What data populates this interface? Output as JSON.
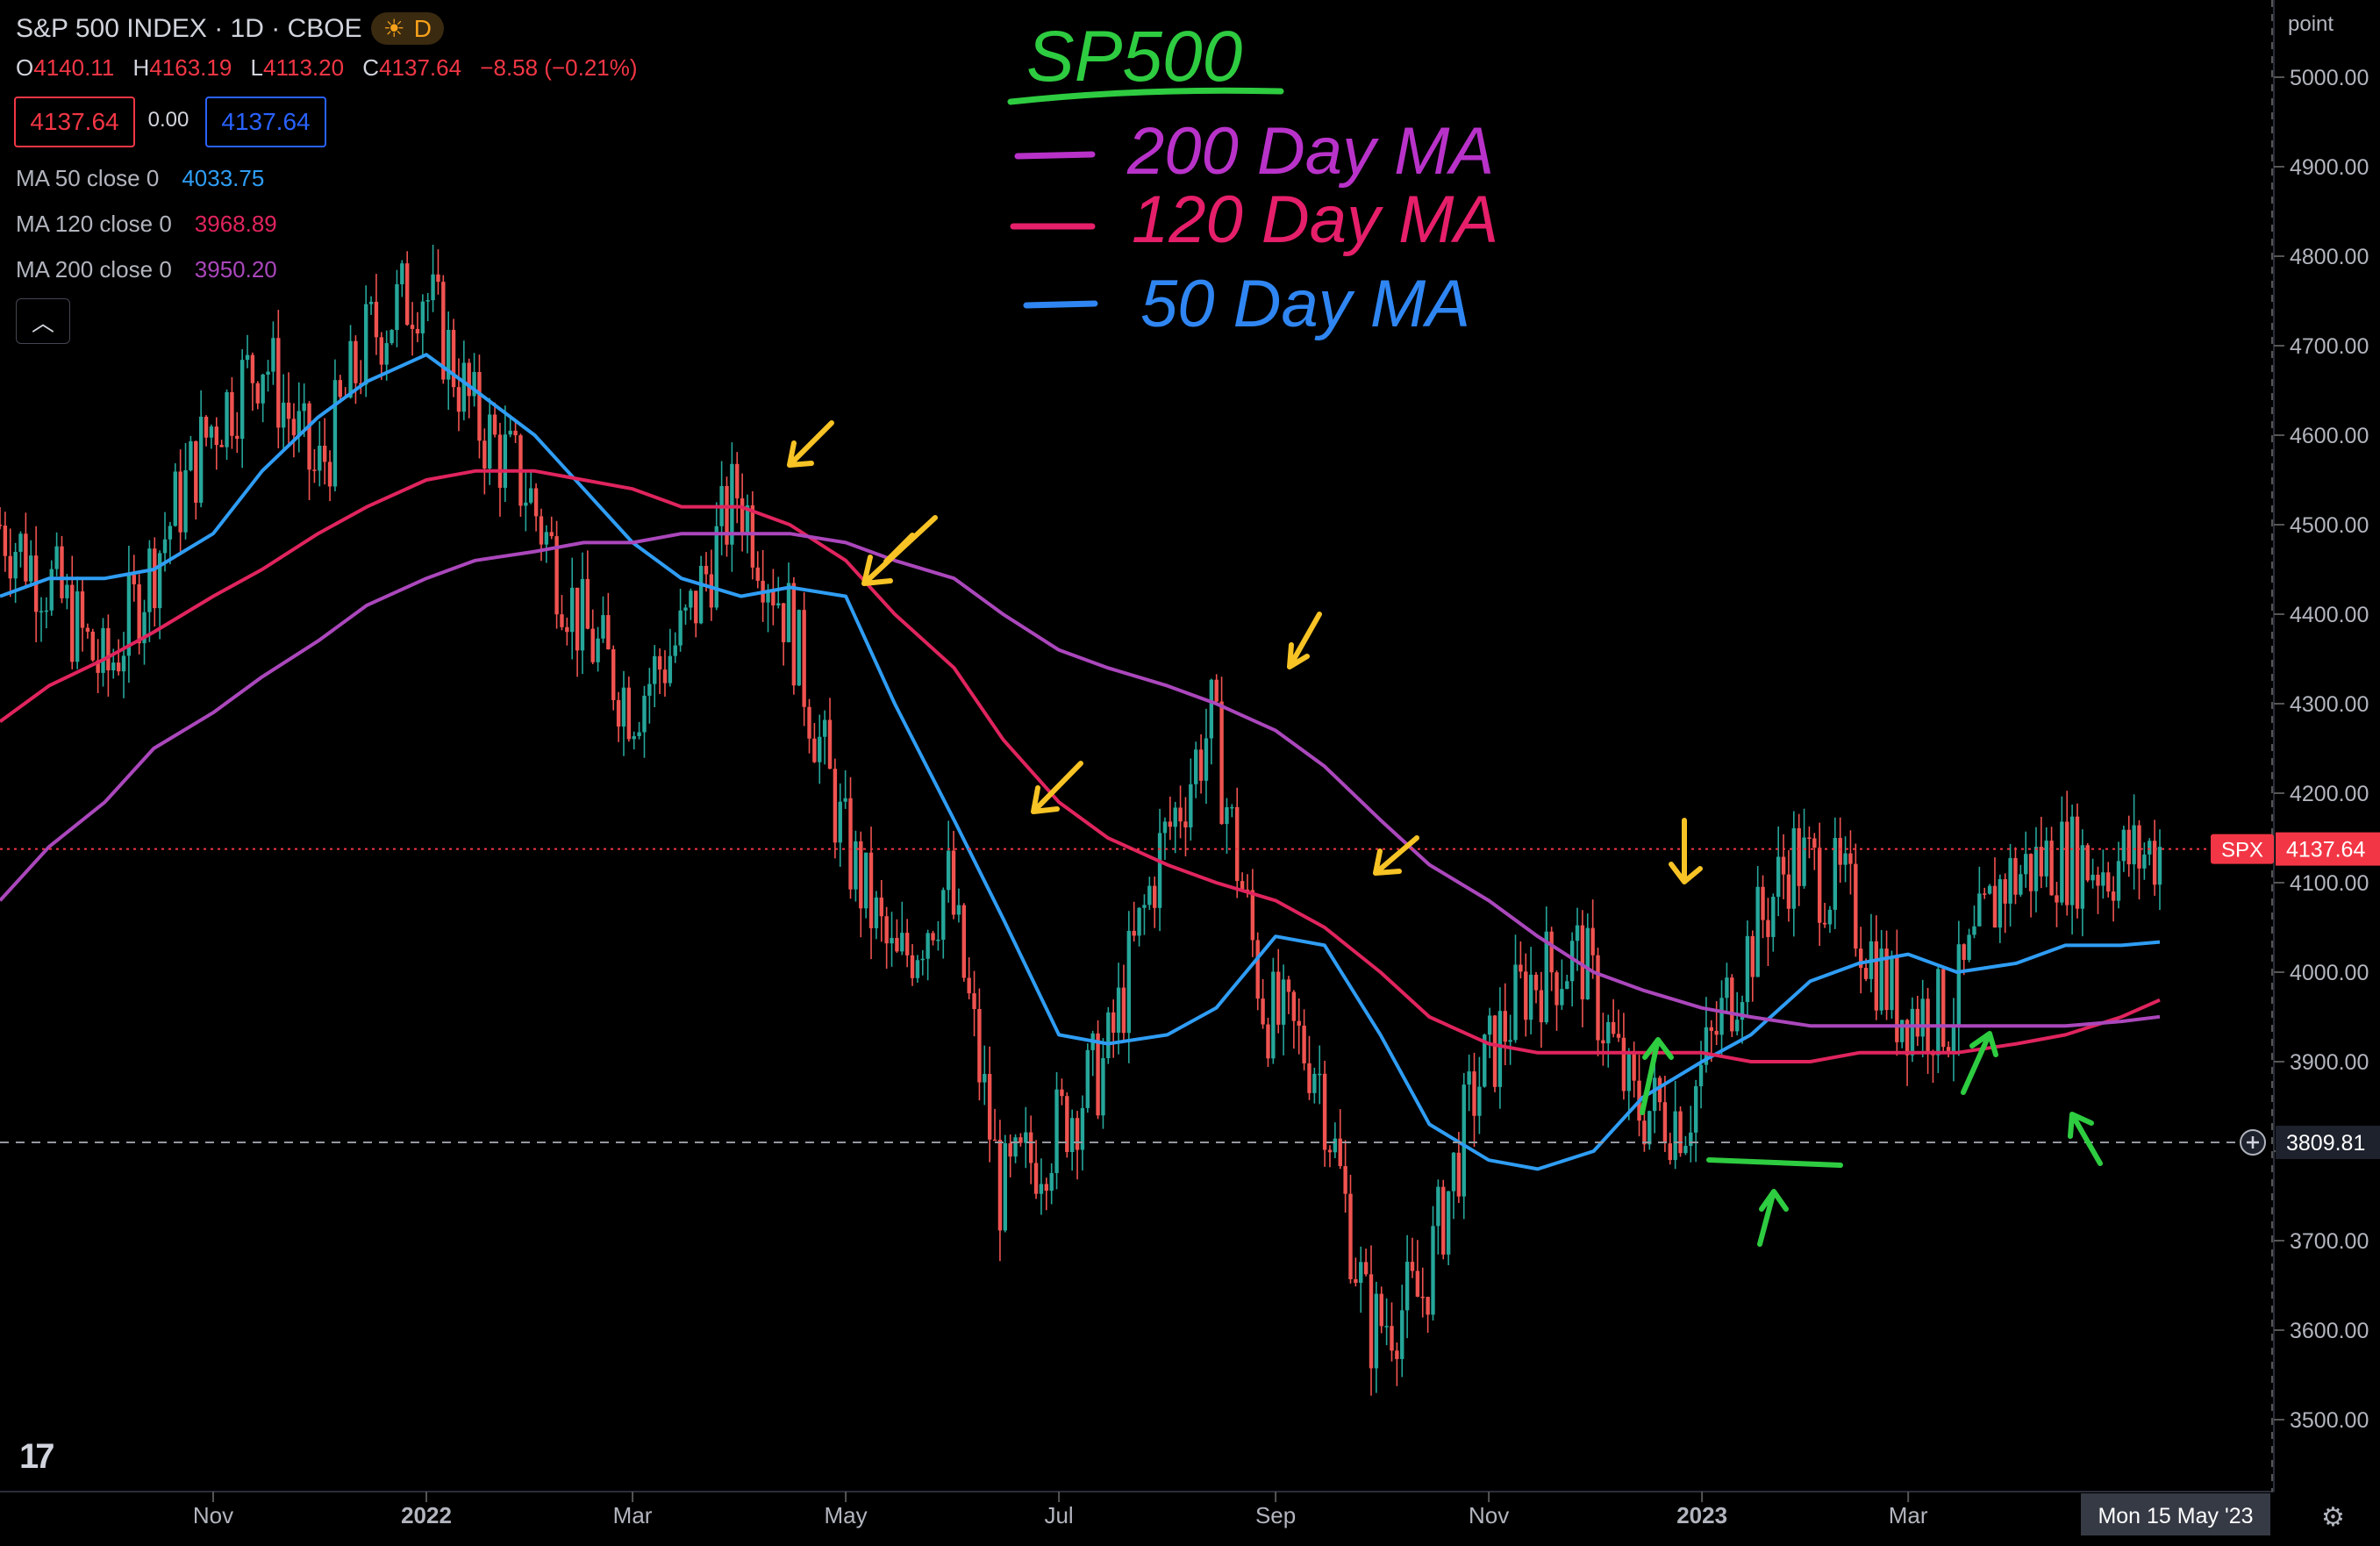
{
  "header": {
    "symbol_title": "S&P 500 INDEX · 1D · CBOE",
    "market_badge": "D",
    "ohlc": {
      "o_label": "O",
      "o_value": "4140.11",
      "h_label": "H",
      "h_value": "4163.19",
      "l_label": "L",
      "l_value": "4113.20",
      "c_label": "C",
      "c_value": "4137.64",
      "change": "−8.58 (−0.21%)"
    },
    "bid": "4137.64",
    "spread": "0.00",
    "ask": "4137.64"
  },
  "indicators": [
    {
      "label": "MA 50 close 0",
      "value": "4033.75",
      "color": "#2f9df4"
    },
    {
      "label": "MA 120 close 0",
      "value": "3968.89",
      "color": "#e0245e"
    },
    {
      "label": "MA 200 close 0",
      "value": "3950.20",
      "color": "#ab47bc"
    }
  ],
  "annotations": {
    "handwritten_title": "SP500",
    "handwritten_legend": [
      {
        "text": "200 Day MA",
        "color": "#b832c9"
      },
      {
        "text": "120 Day MA",
        "color": "#e61f6a"
      },
      {
        "text": "50 Day MA",
        "color": "#2f86f2"
      }
    ]
  },
  "price_axis": {
    "unit": "point",
    "current_label": "SPX",
    "current_value": "4137.64",
    "crosshair_value": "3809.81"
  },
  "time_axis": {
    "crosshair_label": "Mon 15 May '23"
  },
  "colors": {
    "up": "#26a69a",
    "down": "#ef5350",
    "background": "#000000",
    "accent_yellow": "#f7c325",
    "accent_green": "#2ecc40"
  },
  "chart_data": {
    "type": "line",
    "title": "S&P 500 INDEX · 1D · CBOE",
    "chart_style": "candlestick",
    "x_ticks": [
      "Nov",
      "2022",
      "Mar",
      "May",
      "Jul",
      "Sep",
      "Nov",
      "2023",
      "Mar"
    ],
    "y_ticks": [
      5000,
      4900,
      4800,
      4700,
      4600,
      4500,
      4400,
      4300,
      4200,
      4100,
      4000,
      3900,
      3800,
      3700,
      3600,
      3500
    ],
    "ylim": [
      3420,
      5080
    ],
    "grid": false,
    "x": [
      "2021-09-01",
      "2021-09-15",
      "2021-10-01",
      "2021-10-15",
      "2021-11-01",
      "2021-11-15",
      "2021-12-01",
      "2021-12-15",
      "2022-01-01",
      "2022-01-15",
      "2022-02-01",
      "2022-02-15",
      "2022-03-01",
      "2022-03-15",
      "2022-04-01",
      "2022-04-15",
      "2022-05-01",
      "2022-05-15",
      "2022-06-01",
      "2022-06-15",
      "2022-07-01",
      "2022-07-15",
      "2022-08-01",
      "2022-08-15",
      "2022-09-01",
      "2022-09-15",
      "2022-10-01",
      "2022-10-15",
      "2022-11-01",
      "2022-11-15",
      "2022-12-01",
      "2022-12-15",
      "2023-01-01",
      "2023-01-15",
      "2023-02-01",
      "2023-02-15",
      "2023-03-01",
      "2023-03-15",
      "2023-04-01",
      "2023-04-15",
      "2023-05-01",
      "2023-05-12"
    ],
    "series": [
      {
        "name": "Close",
        "values": [
          4500,
          4430,
          4330,
          4470,
          4610,
          4690,
          4550,
          4710,
          4770,
          4620,
          4540,
          4390,
          4300,
          4380,
          4540,
          4390,
          4150,
          4000,
          4100,
          3750,
          3820,
          3900,
          4130,
          4280,
          3960,
          3900,
          3600,
          3640,
          3870,
          3990,
          4020,
          3850,
          3840,
          4000,
          4130,
          4090,
          3960,
          3950,
          4100,
          4130,
          4120,
          4137.64
        ]
      },
      {
        "name": "MA 50 close 0",
        "values": [
          4420,
          4440,
          4440,
          4450,
          4490,
          4560,
          4620,
          4660,
          4690,
          4650,
          4600,
          4540,
          4480,
          4440,
          4420,
          4430,
          4420,
          4300,
          4170,
          4060,
          3930,
          3920,
          3930,
          3960,
          4040,
          4030,
          3930,
          3830,
          3790,
          3780,
          3800,
          3860,
          3900,
          3930,
          3990,
          4010,
          4020,
          4000,
          4010,
          4030,
          4030,
          4033.75
        ]
      },
      {
        "name": "MA 120 close 0",
        "values": [
          4280,
          4320,
          4350,
          4380,
          4420,
          4450,
          4490,
          4520,
          4550,
          4560,
          4560,
          4550,
          4540,
          4520,
          4520,
          4500,
          4460,
          4400,
          4340,
          4260,
          4190,
          4150,
          4120,
          4100,
          4080,
          4050,
          4000,
          3950,
          3920,
          3910,
          3910,
          3910,
          3910,
          3900,
          3900,
          3910,
          3910,
          3910,
          3920,
          3930,
          3950,
          3968.89
        ]
      },
      {
        "name": "MA 200 close 0",
        "values": [
          4080,
          4140,
          4190,
          4250,
          4290,
          4330,
          4370,
          4410,
          4440,
          4460,
          4470,
          4480,
          4480,
          4490,
          4490,
          4490,
          4480,
          4460,
          4440,
          4400,
          4360,
          4340,
          4320,
          4300,
          4270,
          4230,
          4170,
          4120,
          4080,
          4040,
          4000,
          3980,
          3960,
          3950,
          3940,
          3940,
          3940,
          3940,
          3940,
          3940,
          3945,
          3950.2
        ]
      }
    ]
  }
}
